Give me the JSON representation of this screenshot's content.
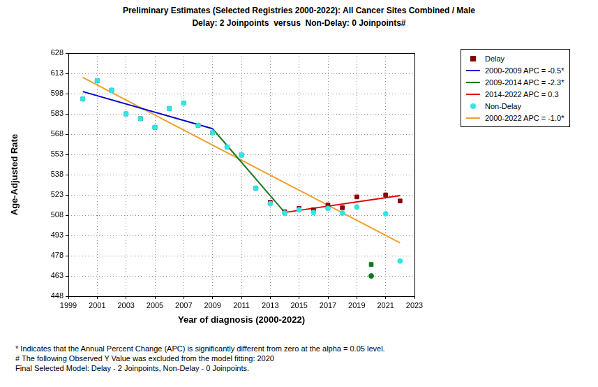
{
  "chart_data": {
    "type": "scatter",
    "title": "Preliminary Estimates (Selected Registries 2000-2022): All Cancer Sites Combined / Male",
    "subtitle": "Delay: 2 Joinpoints  versus  Non-Delay: 0 Joinpoints#",
    "x_label": "Year of diagnosis (2000-2022)",
    "y_label": "Age-Adjusted Rate",
    "xlim": [
      1999,
      2023
    ],
    "xticks": [
      1999,
      2001,
      2003,
      2005,
      2007,
      2009,
      2011,
      2013,
      2015,
      2017,
      2019,
      2021,
      2023
    ],
    "ylim": [
      448,
      628
    ],
    "yticks": [
      448,
      463,
      478,
      493,
      508,
      523,
      538,
      553,
      568,
      583,
      598,
      613,
      628
    ],
    "grid": true,
    "legend": "right",
    "series": [
      {
        "name": "Delay",
        "type": "scatter",
        "marker": "square",
        "color": "#8b0000",
        "colors": [
          "#8b0000",
          "#8b0000",
          "#8b0000",
          "#8b0000",
          "#8b0000",
          "#8b0000",
          "#8b0000",
          "#8b0000",
          "#8b0000",
          "#8b0000",
          "#8b0000",
          "#8b0000",
          "#8b0000",
          "#8b0000",
          "#8b0000",
          "#8b0000",
          "#8b0000",
          "#8b0000",
          "#8b0000",
          "#8b0000",
          "#0a7a1a",
          "#8b0000",
          "#8b0000"
        ],
        "x": [
          2000,
          2001,
          2002,
          2003,
          2004,
          2005,
          2006,
          2007,
          2008,
          2009,
          2010,
          2011,
          2012,
          2013,
          2014,
          2015,
          2016,
          2017,
          2018,
          2019,
          2020,
          2021,
          2022
        ],
        "values": [
          594,
          607.5,
          600.5,
          583,
          579.5,
          573,
          587,
          591,
          574.5,
          569,
          558.5,
          552.5,
          528,
          517.5,
          510.5,
          513,
          512,
          515.5,
          513.5,
          521.5,
          471.5,
          523,
          518.5
        ]
      },
      {
        "name": "2000-2009 APC = -0.5*",
        "type": "line",
        "line_style": "solid",
        "color": "#0000cc",
        "x": [
          2000,
          2009
        ],
        "values": [
          599.5,
          572
        ]
      },
      {
        "name": "2009-2014 APC = -2.3*",
        "type": "line",
        "line_style": "solid",
        "color": "#1a7a1a",
        "x": [
          2009,
          2014
        ],
        "values": [
          572,
          510
        ]
      },
      {
        "name": "2014-2022 APC = 0.3",
        "type": "line",
        "line_style": "solid",
        "color": "#e00000",
        "x": [
          2014,
          2022
        ],
        "values": [
          510,
          522.5
        ]
      },
      {
        "name": "Non-Delay",
        "type": "scatter",
        "marker": "circle",
        "color": "#2ee6e6",
        "colors": [
          "#2ee6e6",
          "#2ee6e6",
          "#2ee6e6",
          "#2ee6e6",
          "#2ee6e6",
          "#2ee6e6",
          "#2ee6e6",
          "#2ee6e6",
          "#2ee6e6",
          "#2ee6e6",
          "#2ee6e6",
          "#2ee6e6",
          "#2ee6e6",
          "#2ee6e6",
          "#2ee6e6",
          "#2ee6e6",
          "#2ee6e6",
          "#2ee6e6",
          "#2ee6e6",
          "#2ee6e6",
          "#0a7a1a",
          "#2ee6e6",
          "#2ee6e6"
        ],
        "x": [
          2000,
          2001,
          2002,
          2003,
          2004,
          2005,
          2006,
          2007,
          2008,
          2009,
          2010,
          2011,
          2012,
          2013,
          2014,
          2015,
          2016,
          2017,
          2018,
          2019,
          2020,
          2021,
          2022
        ],
        "values": [
          594,
          607.5,
          600.5,
          583,
          579.5,
          573,
          587,
          591,
          574.5,
          569,
          558.5,
          552.5,
          528,
          516.5,
          509.5,
          512,
          510,
          513,
          509.5,
          514,
          463,
          509,
          474
        ]
      },
      {
        "name": "2000-2022 APC = -1.0*",
        "type": "line",
        "line_style": "solid",
        "color": "#f0a030",
        "x": [
          2000,
          2022
        ],
        "values": [
          610,
          487.5
        ]
      }
    ],
    "annotations": [
      "* Indicates that the Annual Percent Change (APC) is significantly different from zero at the alpha = 0.05 level.",
      "# The following Observed Y Value was excluded from the model fitting: 2020",
      "Final Selected Model: Delay - 2 Joinpoints, Non-Delay - 0 Joinpoints."
    ]
  }
}
